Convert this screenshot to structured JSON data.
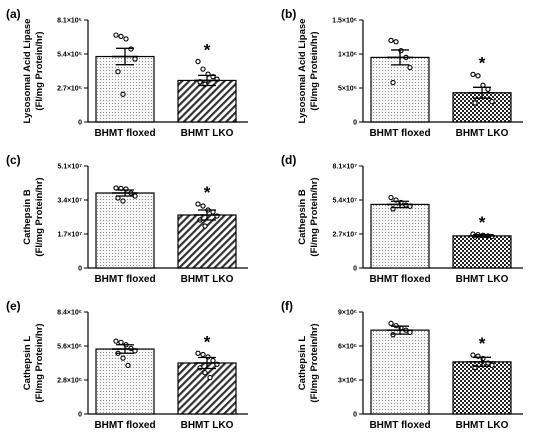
{
  "chart_data": [
    {
      "type": "bar",
      "panel_label": "(a)",
      "ylabel_line1": "Lysosomal Acid Lipase",
      "ylabel_line2": "(FI/mg Protein/hr)",
      "yticks": [
        "0",
        "2.7×10⁵",
        "5.4×10⁵",
        "8.1×10⁵"
      ],
      "ylim": [
        0,
        810000
      ],
      "categories": [
        "BHMT floxed",
        "BHMT LKO"
      ],
      "values": [
        520000,
        330000
      ],
      "errors": [
        65000,
        40000
      ],
      "points": [
        [
          690000,
          680000,
          660000,
          580000,
          500000,
          400000,
          220000
        ],
        [
          480000,
          420000,
          380000,
          360000,
          340000,
          320000,
          300000
        ]
      ],
      "patterns": [
        "dots",
        "hatch"
      ],
      "significance": [
        "",
        "*"
      ]
    },
    {
      "type": "bar",
      "panel_label": "(b)",
      "ylabel_line1": "Lysosomal Acid Lipase",
      "ylabel_line2": "(FI/mg Protein/hr)",
      "yticks": [
        "0",
        "5×10⁵",
        "1×10⁶",
        "1.5×10⁶"
      ],
      "ylim": [
        0,
        1500000
      ],
      "categories": [
        "BHMT floxed",
        "BHMT LKO"
      ],
      "values": [
        950000,
        430000
      ],
      "errors": [
        110000,
        80000
      ],
      "points": [
        [
          1200000,
          1180000,
          1050000,
          950000,
          800000,
          580000
        ],
        [
          700000,
          680000,
          540000,
          480000,
          300000,
          280000
        ]
      ],
      "patterns": [
        "dots",
        "checker"
      ],
      "significance": [
        "",
        "*"
      ]
    },
    {
      "type": "bar",
      "panel_label": "(c)",
      "ylabel_line1": "Cathepsin B",
      "ylabel_line2": "(FI/mg Protein/hr)",
      "yticks": [
        "0",
        "1.7×10⁷",
        "3.4×10⁷",
        "5.1×10⁷"
      ],
      "ylim": [
        0,
        51000000
      ],
      "categories": [
        "BHMT floxed",
        "BHMT LKO"
      ],
      "values": [
        37500000,
        26500000
      ],
      "errors": [
        1500000,
        2500000
      ],
      "points": [
        [
          40000000,
          39800000,
          39500000,
          37500000,
          36000000,
          35000000,
          33500000
        ],
        [
          32000000,
          31000000,
          29000000,
          28000000,
          26000000,
          24000000,
          21000000
        ]
      ],
      "patterns": [
        "dots",
        "hatch"
      ],
      "significance": [
        "",
        "*"
      ]
    },
    {
      "type": "bar",
      "panel_label": "(d)",
      "ylabel_line1": "Cathepsin B",
      "ylabel_line2": "(FI/mg Protein/hr)",
      "yticks": [
        "0",
        "2.7×10⁷",
        "5.4×10⁷",
        "8.1×10⁷"
      ],
      "ylim": [
        0,
        81000000
      ],
      "categories": [
        "BHMT floxed",
        "BHMT LKO"
      ],
      "values": [
        50500000,
        25500000
      ],
      "errors": [
        2500000,
        1000000
      ],
      "points": [
        [
          56000000,
          54000000,
          52000000,
          50000000,
          49000000,
          47000000
        ],
        [
          27000000,
          26500000,
          26000000,
          25500000,
          25000000,
          24500000
        ]
      ],
      "patterns": [
        "dots",
        "checker"
      ],
      "significance": [
        "",
        "*"
      ]
    },
    {
      "type": "bar",
      "panel_label": "(e)",
      "ylabel_line1": "Cathepsin L",
      "ylabel_line2": "(FI/mg Protein/hr)",
      "yticks": [
        "0",
        "2.8×10⁶",
        "5.6×10⁶",
        "8.4×10⁶"
      ],
      "ylim": [
        0,
        8400000
      ],
      "categories": [
        "BHMT floxed",
        "BHMT LKO"
      ],
      "values": [
        5350000,
        4200000
      ],
      "errors": [
        350000,
        450000
      ],
      "points": [
        [
          6000000,
          5900000,
          5700000,
          5400000,
          5200000,
          5000000,
          4600000,
          4000000
        ],
        [
          5000000,
          4900000,
          4700000,
          4400000,
          4100000,
          3800000,
          3400000,
          3000000
        ]
      ],
      "patterns": [
        "dots",
        "hatch"
      ],
      "significance": [
        "",
        "*"
      ]
    },
    {
      "type": "bar",
      "panel_label": "(f)",
      "ylabel_line1": "Cathepsin L",
      "ylabel_line2": "(FI/mg Protein/hr)",
      "yticks": [
        "0",
        "3×10⁶",
        "6×10⁶",
        "9×10⁶"
      ],
      "ylim": [
        0,
        9000000
      ],
      "categories": [
        "BHMT floxed",
        "BHMT LKO"
      ],
      "values": [
        7400000,
        4600000
      ],
      "errors": [
        350000,
        400000
      ],
      "points": [
        [
          8000000,
          7800000,
          7600000,
          7400000,
          7200000,
          7000000
        ],
        [
          5200000,
          5100000,
          4900000,
          4500000,
          4300000,
          4100000
        ]
      ],
      "patterns": [
        "dots",
        "checker"
      ],
      "significance": [
        "",
        "*"
      ]
    }
  ]
}
